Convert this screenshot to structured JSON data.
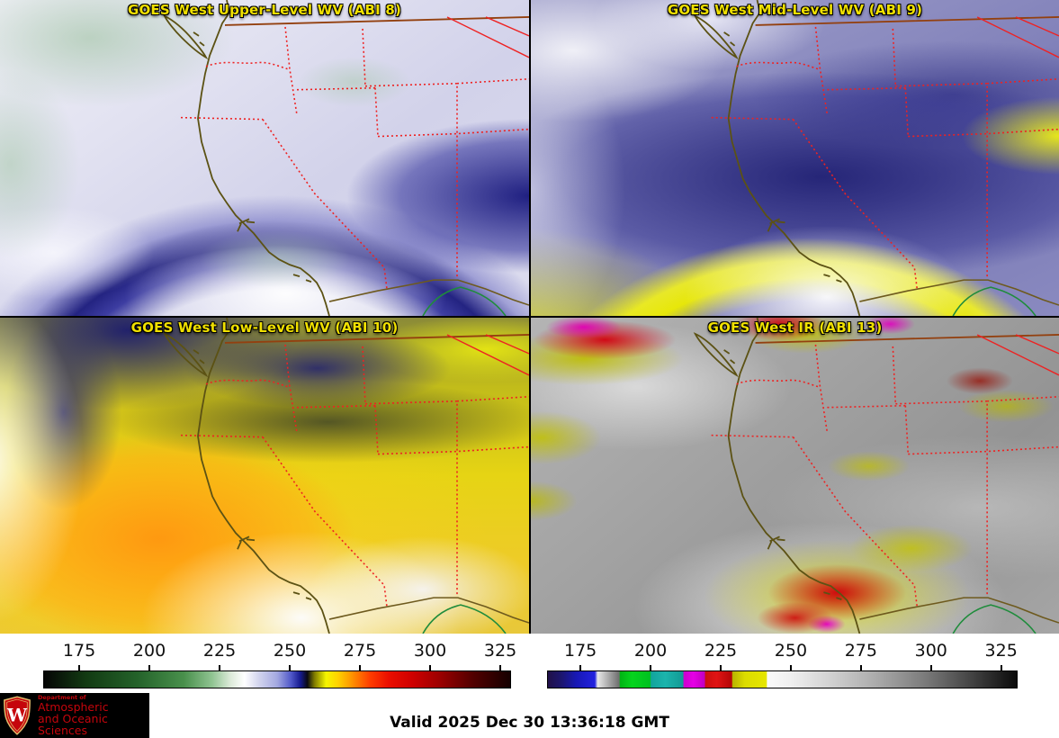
{
  "panels": [
    {
      "title": "GOES West Upper-Level WV (ABI 8)"
    },
    {
      "title": "GOES West Mid-Level WV (ABI 9)"
    },
    {
      "title": "GOES West Low-Level WV (ABI 10)"
    },
    {
      "title": "GOES West IR (ABI 13)"
    }
  ],
  "colorbars": [
    {
      "name": "wv-colorbar",
      "ticks": [
        "175",
        "200",
        "225",
        "250",
        "275",
        "300",
        "325"
      ],
      "tick_start_pct": 7.7,
      "tick_step_pct": 15.0,
      "stops": [
        [
          0,
          "#050505"
        ],
        [
          9,
          "#123a12"
        ],
        [
          20,
          "#24622a"
        ],
        [
          30,
          "#49904c"
        ],
        [
          36,
          "#8fc391"
        ],
        [
          40,
          "#dcead9"
        ],
        [
          43,
          "#ffffff"
        ],
        [
          46,
          "#d3d5ee"
        ],
        [
          50,
          "#a3a8e0"
        ],
        [
          53,
          "#5058c8"
        ],
        [
          55,
          "#151a8e"
        ],
        [
          56.5,
          "#0a0a12"
        ],
        [
          58,
          "#7e7a00"
        ],
        [
          60.5,
          "#f5f500"
        ],
        [
          63,
          "#ffd300"
        ],
        [
          66,
          "#ff9400"
        ],
        [
          70,
          "#ff3c00"
        ],
        [
          74,
          "#ea0e00"
        ],
        [
          79,
          "#cf0000"
        ],
        [
          85,
          "#9b0000"
        ],
        [
          92,
          "#520000"
        ],
        [
          100,
          "#150000"
        ]
      ]
    },
    {
      "name": "ir-colorbar",
      "ticks": [
        "175",
        "200",
        "225",
        "250",
        "275",
        "300",
        "325"
      ],
      "tick_start_pct": 7.1,
      "tick_step_pct": 14.9,
      "stops": [
        [
          0,
          "#201048"
        ],
        [
          3,
          "#1c1670"
        ],
        [
          6,
          "#1818b4"
        ],
        [
          10,
          "#2222e0"
        ],
        [
          10.6,
          "#e8e8e8"
        ],
        [
          13,
          "#a8a8a8"
        ],
        [
          15.2,
          "#6e6e6e"
        ],
        [
          15.4,
          "#00b414"
        ],
        [
          18,
          "#06d41e"
        ],
        [
          21.8,
          "#00c020"
        ],
        [
          22,
          "#12a49c"
        ],
        [
          25,
          "#1cb4ac"
        ],
        [
          28.8,
          "#129a94"
        ],
        [
          29,
          "#cc00cc"
        ],
        [
          31,
          "#e600e6"
        ],
        [
          33.4,
          "#c000c0"
        ],
        [
          33.6,
          "#cc0e0e"
        ],
        [
          36,
          "#e01414"
        ],
        [
          39.2,
          "#b40606"
        ],
        [
          39.4,
          "#b8b400"
        ],
        [
          42,
          "#dcdc00"
        ],
        [
          46.6,
          "#e6e600"
        ],
        [
          46.8,
          "#fafafa"
        ],
        [
          52,
          "#efefef"
        ],
        [
          60,
          "#d2d2d2"
        ],
        [
          70,
          "#ababab"
        ],
        [
          80,
          "#7d7d7d"
        ],
        [
          90,
          "#454545"
        ],
        [
          100,
          "#0a0a0a"
        ]
      ]
    }
  ],
  "footer": {
    "valid_label": "Valid 2025 Dec 30 13:36:18 GMT"
  },
  "logo": {
    "dept": "Department of",
    "line1": "Atmospheric",
    "line2": "and Oceanic Sciences",
    "monogram": "W",
    "accent": "#c5050c",
    "background": "#000000"
  },
  "map_colors": {
    "coastline": "#5c5214",
    "canada_border": "#93400f",
    "state_border": "#ee2222",
    "mexico_border": "#6e5a1e",
    "river": "#1f8c3c"
  },
  "style": {
    "title_color": "#f0e000",
    "tick_color": "#111111"
  }
}
